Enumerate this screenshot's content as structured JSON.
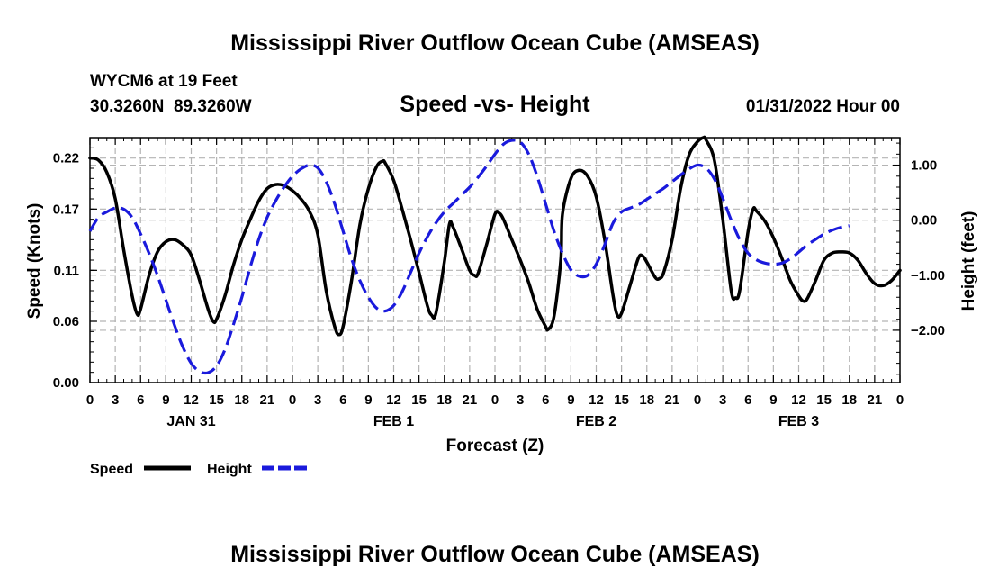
{
  "chart_data": {
    "type": "line",
    "title": "Mississippi River Outflow Ocean Cube (AMSEAS)",
    "title_repeat": "Mississippi River Outflow Ocean Cube (AMSEAS)",
    "station": "WYCM6 at 19 Feet",
    "coords": "30.3260N  89.3260W",
    "subtitle": "Speed -vs- Height",
    "date": "01/31/2022 Hour 00",
    "xlabel": "Forecast (Z)",
    "ylabel_left": "Speed (Knots)",
    "ylabel_right": "Height (feet)",
    "x_range_hours": [
      0,
      96
    ],
    "y_left_range": [
      0,
      0.24
    ],
    "y_right_range": [
      -2.95,
      1.5
    ],
    "x_tick_labels": [
      "0",
      "3",
      "6",
      "9",
      "12",
      "15",
      "18",
      "21",
      "0",
      "3",
      "6",
      "9",
      "12",
      "15",
      "18",
      "21",
      "0",
      "3",
      "6",
      "9",
      "12",
      "15",
      "18",
      "21",
      "0",
      "3",
      "6",
      "9",
      "12",
      "15",
      "18",
      "21",
      "0"
    ],
    "day_labels": [
      {
        "label": "JAN 31",
        "hour": 12
      },
      {
        "label": "FEB 1",
        "hour": 36
      },
      {
        "label": "FEB 2",
        "hour": 60
      },
      {
        "label": "FEB 3",
        "hour": 84
      }
    ],
    "y_left_ticks": [
      {
        "label": "0.00",
        "value": 0.0
      },
      {
        "label": "0.06",
        "value": 0.06
      },
      {
        "label": "0.11",
        "value": 0.11
      },
      {
        "label": "0.17",
        "value": 0.17
      },
      {
        "label": "0.22",
        "value": 0.22
      }
    ],
    "y_right_ticks": [
      {
        "label": "1.00",
        "value": 1.0
      },
      {
        "label": "0.00",
        "value": 0.0
      },
      {
        "label": "−1.00",
        "value": -1.0
      },
      {
        "label": "−2.00",
        "value": -2.0
      }
    ],
    "legend": [
      {
        "name": "Speed",
        "color": "#000000",
        "style": "solid"
      },
      {
        "name": "Height",
        "color": "#1a1adc",
        "style": "dashed"
      }
    ],
    "series": [
      {
        "name": "Speed",
        "axis": "left",
        "color": "#000000",
        "points": [
          [
            0,
            0.22
          ],
          [
            1,
            0.218
          ],
          [
            2,
            0.206
          ],
          [
            3,
            0.18
          ],
          [
            4,
            0.13
          ],
          [
            5,
            0.085
          ],
          [
            5.6,
            0.067
          ],
          [
            6,
            0.072
          ],
          [
            7,
            0.105
          ],
          [
            8,
            0.128
          ],
          [
            9,
            0.138
          ],
          [
            10,
            0.14
          ],
          [
            11,
            0.135
          ],
          [
            12,
            0.125
          ],
          [
            13,
            0.1
          ],
          [
            14,
            0.072
          ],
          [
            14.6,
            0.06
          ],
          [
            15,
            0.062
          ],
          [
            16,
            0.085
          ],
          [
            17,
            0.115
          ],
          [
            18,
            0.14
          ],
          [
            19,
            0.16
          ],
          [
            20,
            0.178
          ],
          [
            21,
            0.19
          ],
          [
            22,
            0.194
          ],
          [
            23,
            0.193
          ],
          [
            24,
            0.188
          ],
          [
            25,
            0.18
          ],
          [
            26,
            0.168
          ],
          [
            27,
            0.145
          ],
          [
            28,
            0.09
          ],
          [
            29,
            0.055
          ],
          [
            29.5,
            0.047
          ],
          [
            30,
            0.055
          ],
          [
            31,
            0.1
          ],
          [
            32,
            0.155
          ],
          [
            33,
            0.19
          ],
          [
            34,
            0.212
          ],
          [
            34.7,
            0.217
          ],
          [
            35,
            0.215
          ],
          [
            36,
            0.198
          ],
          [
            37,
            0.17
          ],
          [
            38,
            0.14
          ],
          [
            39,
            0.108
          ],
          [
            40,
            0.075
          ],
          [
            40.5,
            0.066
          ],
          [
            41,
            0.068
          ],
          [
            42,
            0.118
          ],
          [
            42.6,
            0.155
          ],
          [
            43,
            0.153
          ],
          [
            44,
            0.132
          ],
          [
            45,
            0.11
          ],
          [
            45.6,
            0.105
          ],
          [
            46,
            0.107
          ],
          [
            47,
            0.135
          ],
          [
            48,
            0.165
          ],
          [
            48.5,
            0.166
          ],
          [
            49,
            0.16
          ],
          [
            50,
            0.14
          ],
          [
            51,
            0.12
          ],
          [
            52,
            0.098
          ],
          [
            53,
            0.072
          ],
          [
            54,
            0.055
          ],
          [
            54.3,
            0.052
          ],
          [
            55,
            0.065
          ],
          [
            55.8,
            0.12
          ],
          [
            56,
            0.165
          ],
          [
            57,
            0.2
          ],
          [
            58,
            0.208
          ],
          [
            59,
            0.202
          ],
          [
            60,
            0.182
          ],
          [
            61,
            0.14
          ],
          [
            62,
            0.085
          ],
          [
            62.5,
            0.066
          ],
          [
            63,
            0.068
          ],
          [
            64,
            0.095
          ],
          [
            65,
            0.122
          ],
          [
            65.5,
            0.124
          ],
          [
            66,
            0.118
          ],
          [
            67,
            0.103
          ],
          [
            67.5,
            0.102
          ],
          [
            68,
            0.108
          ],
          [
            69,
            0.14
          ],
          [
            70,
            0.19
          ],
          [
            71,
            0.223
          ],
          [
            72,
            0.236
          ],
          [
            72.7,
            0.24
          ],
          [
            73,
            0.238
          ],
          [
            74,
            0.218
          ],
          [
            75,
            0.16
          ],
          [
            76,
            0.09
          ],
          [
            76.5,
            0.083
          ],
          [
            77,
            0.09
          ],
          [
            78,
            0.148
          ],
          [
            78.6,
            0.17
          ],
          [
            79,
            0.168
          ],
          [
            80,
            0.158
          ],
          [
            81,
            0.142
          ],
          [
            82,
            0.122
          ],
          [
            83,
            0.1
          ],
          [
            84,
            0.085
          ],
          [
            84.5,
            0.08
          ],
          [
            85,
            0.082
          ],
          [
            86,
            0.1
          ],
          [
            87,
            0.12
          ],
          [
            88,
            0.127
          ],
          [
            89,
            0.128
          ],
          [
            90,
            0.127
          ],
          [
            91,
            0.12
          ],
          [
            92,
            0.107
          ],
          [
            93,
            0.097
          ],
          [
            94,
            0.095
          ],
          [
            95,
            0.1
          ],
          [
            96,
            0.11
          ]
        ]
      },
      {
        "name": "Height",
        "axis": "right",
        "color": "#1a1adc",
        "points": [
          [
            0,
            -0.2
          ],
          [
            1,
            0.05
          ],
          [
            2,
            0.15
          ],
          [
            3,
            0.22
          ],
          [
            4,
            0.2
          ],
          [
            5,
            0.05
          ],
          [
            6,
            -0.25
          ],
          [
            7,
            -0.6
          ],
          [
            8,
            -1.0
          ],
          [
            9,
            -1.45
          ],
          [
            10,
            -1.9
          ],
          [
            11,
            -2.3
          ],
          [
            12,
            -2.6
          ],
          [
            13,
            -2.75
          ],
          [
            14,
            -2.77
          ],
          [
            15,
            -2.65
          ],
          [
            16,
            -2.35
          ],
          [
            17,
            -1.9
          ],
          [
            18,
            -1.4
          ],
          [
            19,
            -0.85
          ],
          [
            20,
            -0.35
          ],
          [
            21,
            0.05
          ],
          [
            22,
            0.35
          ],
          [
            23,
            0.6
          ],
          [
            24,
            0.8
          ],
          [
            25,
            0.93
          ],
          [
            26,
            1.0
          ],
          [
            27,
            0.95
          ],
          [
            28,
            0.7
          ],
          [
            29,
            0.3
          ],
          [
            30,
            -0.2
          ],
          [
            31,
            -0.7
          ],
          [
            32,
            -1.1
          ],
          [
            33,
            -1.4
          ],
          [
            34,
            -1.6
          ],
          [
            35,
            -1.65
          ],
          [
            36,
            -1.55
          ],
          [
            37,
            -1.3
          ],
          [
            38,
            -0.95
          ],
          [
            39,
            -0.6
          ],
          [
            40,
            -0.3
          ],
          [
            41,
            -0.05
          ],
          [
            42,
            0.15
          ],
          [
            43,
            0.3
          ],
          [
            44,
            0.45
          ],
          [
            45,
            0.6
          ],
          [
            46,
            0.78
          ],
          [
            47,
            0.98
          ],
          [
            48,
            1.2
          ],
          [
            49,
            1.38
          ],
          [
            50,
            1.45
          ],
          [
            51,
            1.42
          ],
          [
            52,
            1.2
          ],
          [
            53,
            0.8
          ],
          [
            54,
            0.3
          ],
          [
            55,
            -0.2
          ],
          [
            56,
            -0.6
          ],
          [
            57,
            -0.9
          ],
          [
            58,
            -1.02
          ],
          [
            59,
            -1.0
          ],
          [
            60,
            -0.8
          ],
          [
            61,
            -0.45
          ],
          [
            62,
            -0.05
          ],
          [
            63,
            0.15
          ],
          [
            64,
            0.22
          ],
          [
            65,
            0.28
          ],
          [
            66,
            0.38
          ],
          [
            67,
            0.48
          ],
          [
            68,
            0.58
          ],
          [
            69,
            0.7
          ],
          [
            70,
            0.82
          ],
          [
            71,
            0.93
          ],
          [
            72,
            1.0
          ],
          [
            73,
            0.95
          ],
          [
            74,
            0.75
          ],
          [
            75,
            0.4
          ],
          [
            76,
            0.0
          ],
          [
            77,
            -0.35
          ],
          [
            78,
            -0.6
          ],
          [
            79,
            -0.72
          ],
          [
            80,
            -0.78
          ],
          [
            81,
            -0.8
          ],
          [
            82,
            -0.78
          ],
          [
            83,
            -0.7
          ],
          [
            84,
            -0.58
          ],
          [
            85,
            -0.45
          ],
          [
            86,
            -0.35
          ],
          [
            87,
            -0.25
          ],
          [
            88,
            -0.18
          ],
          [
            89,
            -0.13
          ],
          [
            90,
            -0.1
          ]
        ]
      }
    ]
  }
}
